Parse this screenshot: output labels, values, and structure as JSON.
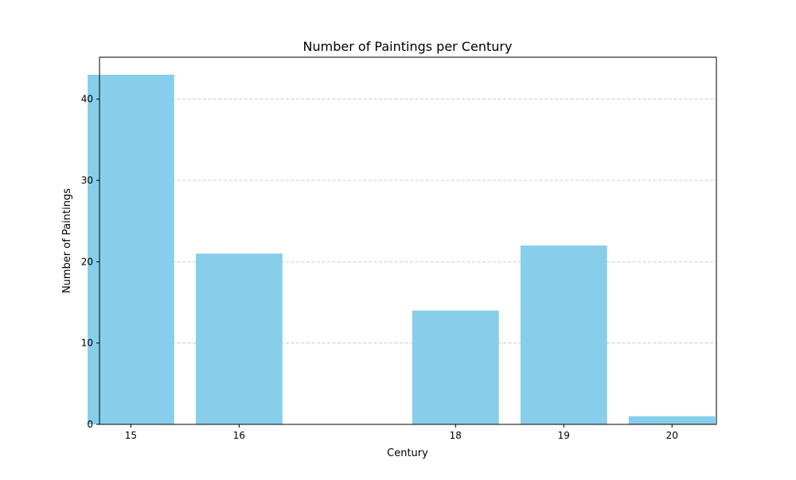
{
  "chart_data": {
    "type": "bar",
    "title": "Number of Paintings per Century",
    "xlabel": "Century",
    "ylabel": "Number of Paintings",
    "x": [
      15,
      16,
      18,
      19,
      20
    ],
    "categories": [
      "15",
      "16",
      "18",
      "19",
      "20"
    ],
    "values": [
      43,
      21,
      14,
      22,
      1
    ],
    "xlim": [
      14.71,
      20.41
    ],
    "ylim": [
      0,
      45.15
    ],
    "yticks": [
      0,
      10,
      20,
      30,
      40
    ],
    "bar_color": "#87ceeb",
    "grid": {
      "axis": "y",
      "style": "dashed",
      "color": "#c0c0c0"
    },
    "legend": "none"
  }
}
